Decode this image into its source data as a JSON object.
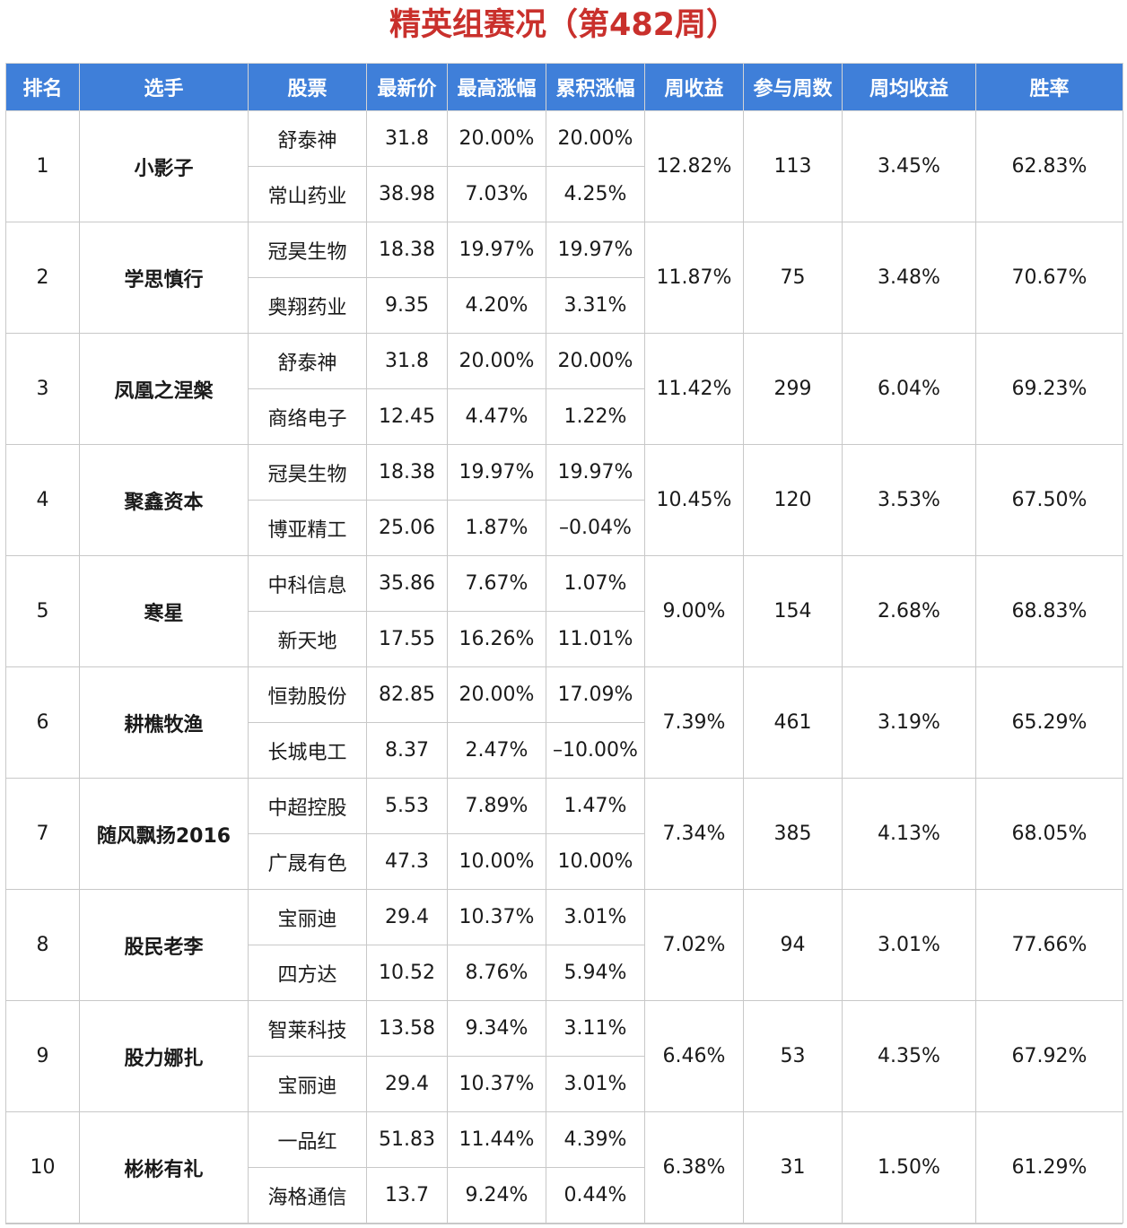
{
  "title": "精英组赛况（第482周）",
  "colors": {
    "title": "#c9302c",
    "header_bg": "#3f7fd9",
    "blue": "#2e62b8",
    "red": "#d93030",
    "green": "#2d8a2d"
  },
  "columns": [
    "排名",
    "选手",
    "股票",
    "最新价",
    "最高涨幅",
    "累积涨幅",
    "周收益",
    "参与周数",
    "周均收益",
    "胜率"
  ],
  "rows": [
    {
      "rank": "1",
      "player": "小影子",
      "weekly_return": "12.82%",
      "weeks": "113",
      "avg_return": "3.45%",
      "win_rate": "62.83%",
      "stocks": [
        {
          "name": "舒泰神",
          "price": "31.8",
          "max_gain": "20.00%",
          "cum_gain": "20.00%"
        },
        {
          "name": "常山药业",
          "price": "38.98",
          "max_gain": "7.03%",
          "cum_gain": "4.25%"
        }
      ]
    },
    {
      "rank": "2",
      "player": "学思慎行",
      "weekly_return": "11.87%",
      "weeks": "75",
      "avg_return": "3.48%",
      "win_rate": "70.67%",
      "stocks": [
        {
          "name": "冠昊生物",
          "price": "18.38",
          "max_gain": "19.97%",
          "cum_gain": "19.97%"
        },
        {
          "name": "奥翔药业",
          "price": "9.35",
          "max_gain": "4.20%",
          "cum_gain": "3.31%"
        }
      ]
    },
    {
      "rank": "3",
      "player": "凤凰之涅槃",
      "weekly_return": "11.42%",
      "weeks": "299",
      "avg_return": "6.04%",
      "win_rate": "69.23%",
      "stocks": [
        {
          "name": "舒泰神",
          "price": "31.8",
          "max_gain": "20.00%",
          "cum_gain": "20.00%"
        },
        {
          "name": "商络电子",
          "price": "12.45",
          "max_gain": "4.47%",
          "cum_gain": "1.22%"
        }
      ]
    },
    {
      "rank": "4",
      "player": "聚鑫资本",
      "weekly_return": "10.45%",
      "weeks": "120",
      "avg_return": "3.53%",
      "win_rate": "67.50%",
      "stocks": [
        {
          "name": "冠昊生物",
          "price": "18.38",
          "max_gain": "19.97%",
          "cum_gain": "19.97%"
        },
        {
          "name": "博亚精工",
          "price": "25.06",
          "max_gain": "1.87%",
          "cum_gain": "–0.04%"
        }
      ]
    },
    {
      "rank": "5",
      "player": "寒星",
      "weekly_return": "9.00%",
      "weeks": "154",
      "avg_return": "2.68%",
      "win_rate": "68.83%",
      "stocks": [
        {
          "name": "中科信息",
          "price": "35.86",
          "max_gain": "7.67%",
          "cum_gain": "1.07%"
        },
        {
          "name": "新天地",
          "price": "17.55",
          "max_gain": "16.26%",
          "cum_gain": "11.01%"
        }
      ]
    },
    {
      "rank": "6",
      "player": "耕樵牧渔",
      "weekly_return": "7.39%",
      "weeks": "461",
      "avg_return": "3.19%",
      "win_rate": "65.29%",
      "stocks": [
        {
          "name": "恒勃股份",
          "price": "82.85",
          "max_gain": "20.00%",
          "cum_gain": "17.09%"
        },
        {
          "name": "长城电工",
          "price": "8.37",
          "max_gain": "2.47%",
          "cum_gain": "–10.00%"
        }
      ]
    },
    {
      "rank": "7",
      "player": "随风飘扬2016",
      "weekly_return": "7.34%",
      "weeks": "385",
      "avg_return": "4.13%",
      "win_rate": "68.05%",
      "stocks": [
        {
          "name": "中超控股",
          "price": "5.53",
          "max_gain": "7.89%",
          "cum_gain": "1.47%"
        },
        {
          "name": "广晟有色",
          "price": "47.3",
          "max_gain": "10.00%",
          "cum_gain": "10.00%"
        }
      ]
    },
    {
      "rank": "8",
      "player": "股民老李",
      "weekly_return": "7.02%",
      "weeks": "94",
      "avg_return": "3.01%",
      "win_rate": "77.66%",
      "stocks": [
        {
          "name": "宝丽迪",
          "price": "29.4",
          "max_gain": "10.37%",
          "cum_gain": "3.01%"
        },
        {
          "name": "四方达",
          "price": "10.52",
          "max_gain": "8.76%",
          "cum_gain": "5.94%"
        }
      ]
    },
    {
      "rank": "9",
      "player": "股力娜扎",
      "weekly_return": "6.46%",
      "weeks": "53",
      "avg_return": "4.35%",
      "win_rate": "67.92%",
      "stocks": [
        {
          "name": "智莱科技",
          "price": "13.58",
          "max_gain": "9.34%",
          "cum_gain": "3.11%"
        },
        {
          "name": "宝丽迪",
          "price": "29.4",
          "max_gain": "10.37%",
          "cum_gain": "3.01%"
        }
      ]
    },
    {
      "rank": "10",
      "player": "彬彬有礼",
      "weekly_return": "6.38%",
      "weeks": "31",
      "avg_return": "1.50%",
      "win_rate": "61.29%",
      "stocks": [
        {
          "name": "一品红",
          "price": "51.83",
          "max_gain": "11.44%",
          "cum_gain": "4.39%"
        },
        {
          "name": "海格通信",
          "price": "13.7",
          "max_gain": "9.24%",
          "cum_gain": "0.44%"
        }
      ]
    }
  ]
}
